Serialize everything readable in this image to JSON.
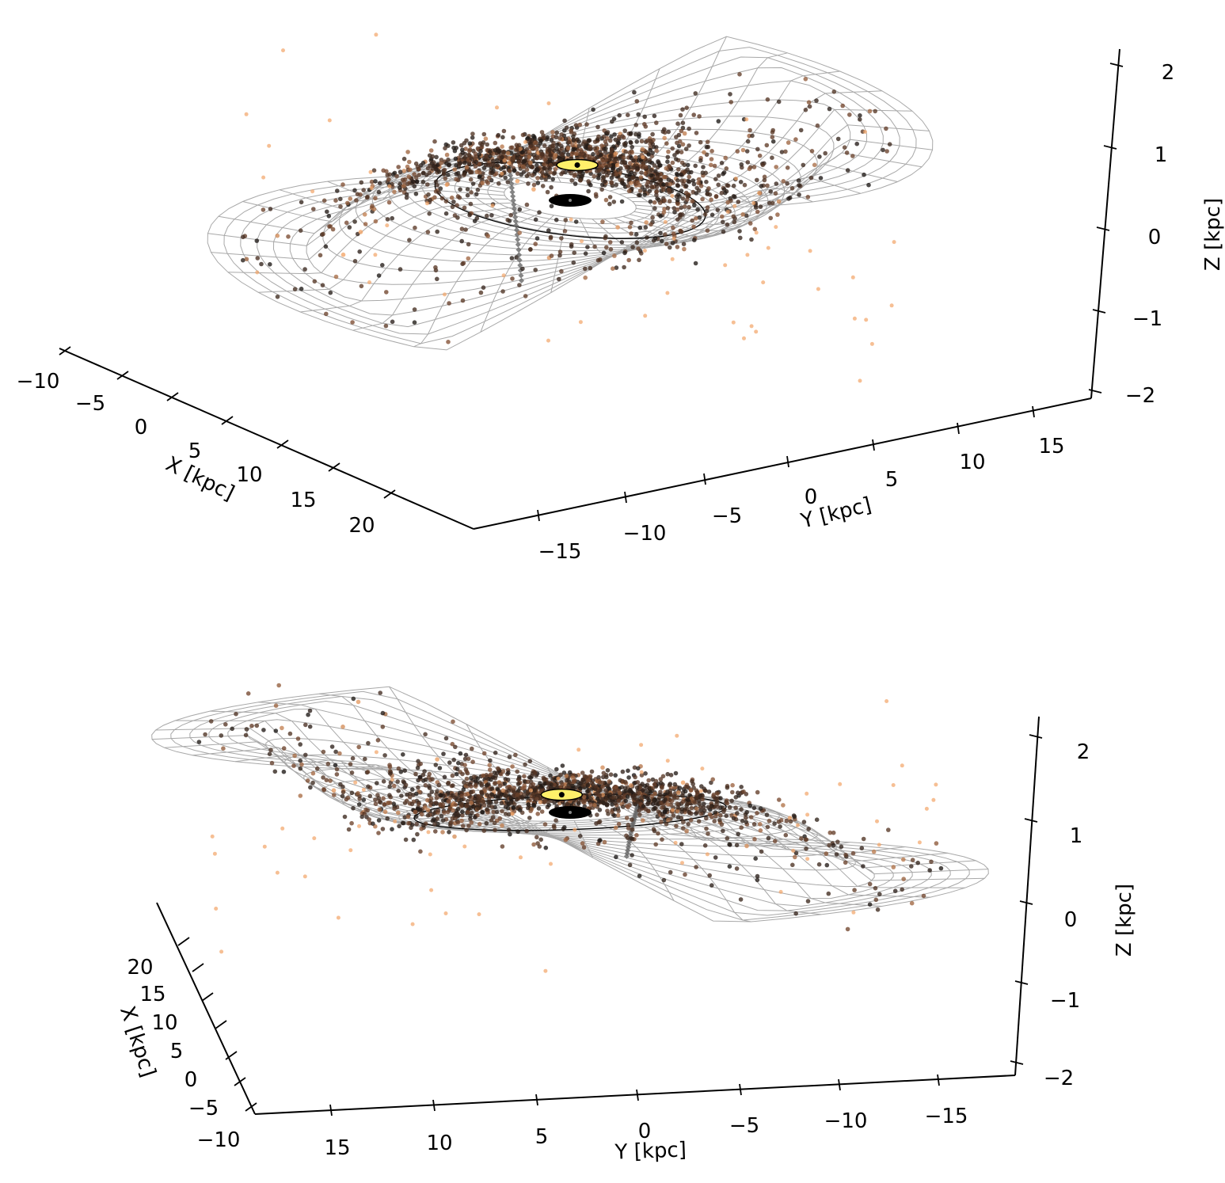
{
  "chart_data": [
    {
      "type": "scatter",
      "view": "upper",
      "xlabel": "X [kpc]",
      "ylabel": "Y [kpc]",
      "zlabel": "Z [kpc]",
      "x_ticks": [
        "−10",
        "−5",
        "0",
        "5",
        "10",
        "15",
        "20"
      ],
      "y_ticks": [
        "−15",
        "−10",
        "−5",
        "0",
        "5",
        "10",
        "15"
      ],
      "z_ticks": [
        "−2",
        "−1",
        "0",
        "1",
        "2"
      ],
      "xlim": [
        -10,
        23
      ],
      "ylim": [
        -18,
        17
      ],
      "zlim": [
        -2.2,
        2.2
      ],
      "sun": {
        "x": -8.2,
        "y": 0,
        "z": 0.02
      },
      "galactic_center": {
        "x": 0,
        "y": 0,
        "z": 0
      },
      "reference_circle_radius": 8.2,
      "warp_surface": "grid",
      "colors": {
        "star_dark": "#1a1614",
        "star_mid": "#7a4a30",
        "star_light": "#f2a467",
        "sun": "#fff06a",
        "mesh": "#a8a8a8"
      }
    },
    {
      "type": "scatter",
      "view": "lower",
      "xlabel": "X [kpc]",
      "ylabel": "Y [kpc]",
      "zlabel": "Z [kpc]",
      "x_ticks": [
        "−10",
        "−5",
        "0",
        "5",
        "10",
        "15",
        "20"
      ],
      "y_ticks": [
        "15",
        "10",
        "5",
        "0",
        "−5",
        "−10",
        "−15"
      ],
      "z_ticks": [
        "−2",
        "−1",
        "0",
        "1",
        "2"
      ],
      "xlim": [
        -10,
        23
      ],
      "ylim": [
        -18,
        18
      ],
      "zlim": [
        -2.2,
        2.2
      ],
      "sun": {
        "x": -8.2,
        "y": 0,
        "z": 0.02
      },
      "galactic_center": {
        "x": 0,
        "y": 0,
        "z": 0
      },
      "reference_circle_radius": 8.2,
      "warp_surface": "grid",
      "colors": {
        "star_dark": "#1a1614",
        "star_mid": "#7a4a30",
        "star_light": "#f2a467",
        "sun": "#fff06a",
        "mesh": "#a8a8a8"
      }
    }
  ]
}
